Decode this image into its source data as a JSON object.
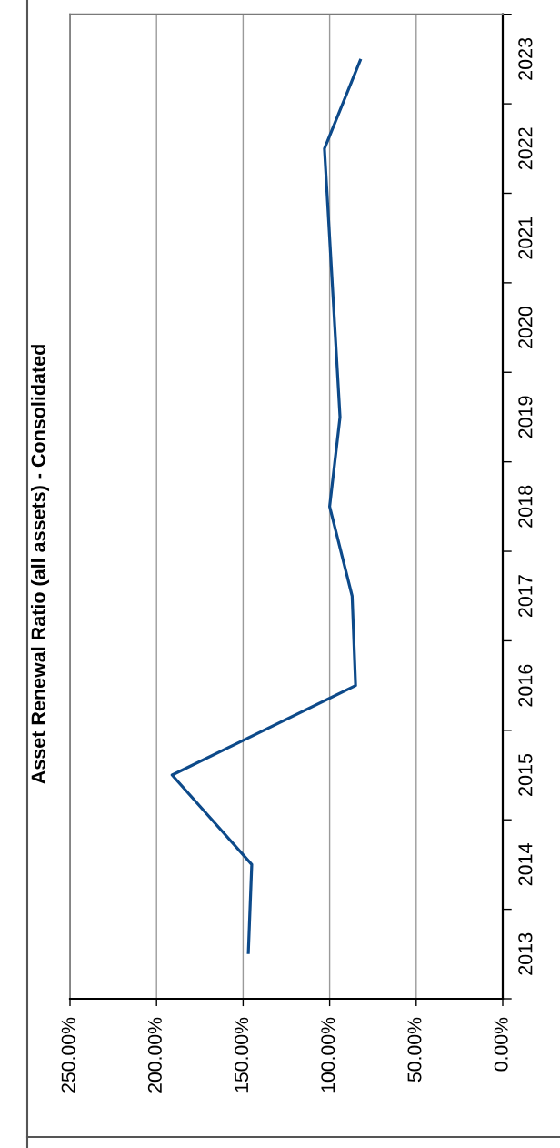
{
  "chart_data": {
    "type": "line",
    "title": "Asset Renewal Ratio (all assets) - Consolidated",
    "orientation": "horizontal",
    "categories": [
      "2023",
      "2022",
      "2021",
      "2020",
      "2019",
      "2018",
      "2017",
      "2016",
      "2015",
      "2014",
      "2013"
    ],
    "series": [
      {
        "color": "#0d4a8a",
        "values": [
          82,
          103,
          100,
          97,
          94,
          100,
          87,
          85,
          191,
          145,
          147
        ]
      }
    ],
    "xlim": [
      250,
      0
    ],
    "xticks": [
      {
        "value": 250,
        "label": "250.00%"
      },
      {
        "value": 200,
        "label": "200.00%"
      },
      {
        "value": 150,
        "label": "150.00%"
      },
      {
        "value": 100,
        "label": "100.00%"
      },
      {
        "value": 50,
        "label": "50.00%"
      },
      {
        "value": 0,
        "label": "0.00%"
      }
    ],
    "grid": "x",
    "line_style": "solid"
  }
}
